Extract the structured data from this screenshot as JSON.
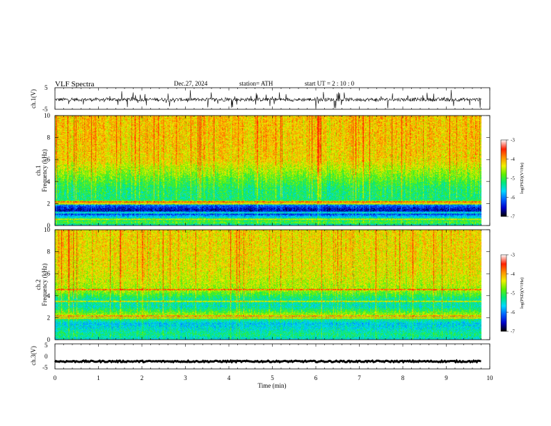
{
  "header": {
    "title": "VLF  Spectra",
    "date": "Dec.27, 2024",
    "station": "station= ATH",
    "start": "start  UT  =    2  : 10 : 0"
  },
  "chart_data": [
    {
      "type": "line",
      "panel": "ch1-waveform",
      "ylabel": "ch.1(V)",
      "xlim": [
        0,
        10
      ],
      "ylim": [
        -5,
        5
      ],
      "yticks": [
        "5",
        "-5"
      ],
      "data_extent_min": 9.8,
      "baseline": -0.5,
      "variation": [
        -2.5,
        2.5
      ]
    },
    {
      "type": "heatmap",
      "panel": "ch1-spectrogram",
      "ylabel": "ch.1\nFrequency  (kHz)",
      "xlim": [
        0,
        10
      ],
      "ylim": [
        0,
        10
      ],
      "yticks": [
        "0",
        "2",
        "4",
        "6",
        "8",
        "10"
      ],
      "data_extent_min": 9.8,
      "psd_profile": [
        {
          "f": 0.0,
          "log_psd": -5.5
        },
        {
          "f": 0.3,
          "log_psd": -4.6
        },
        {
          "f": 0.8,
          "log_psd": -5.4
        },
        {
          "f": 1.1,
          "log_psd": -6.3
        },
        {
          "f": 1.5,
          "log_psd": -6.5
        },
        {
          "f": 1.9,
          "log_psd": -5.9
        },
        {
          "f": 2.1,
          "log_psd": -4.0
        },
        {
          "f": 2.4,
          "log_psd": -5.0
        },
        {
          "f": 3.5,
          "log_psd": -4.9
        },
        {
          "f": 4.5,
          "log_psd": -4.5
        },
        {
          "f": 6.0,
          "log_psd": -3.9
        },
        {
          "f": 8.0,
          "log_psd": -3.8
        },
        {
          "f": 10.0,
          "log_psd": -3.8
        }
      ],
      "lines_khz": [
        0.6,
        1.2,
        2.0,
        2.2
      ]
    },
    {
      "type": "heatmap",
      "panel": "ch2-spectrogram",
      "ylabel": "ch.2\nFrequency  (kHz)",
      "xlim": [
        0,
        10
      ],
      "ylim": [
        0,
        10
      ],
      "yticks": [
        "0",
        "2",
        "4",
        "6",
        "8",
        "10"
      ],
      "data_extent_min": 9.8,
      "psd_profile": [
        {
          "f": 0.0,
          "log_psd": -5.4
        },
        {
          "f": 0.5,
          "log_psd": -5.0
        },
        {
          "f": 1.0,
          "log_psd": -5.3
        },
        {
          "f": 1.5,
          "log_psd": -5.5
        },
        {
          "f": 2.0,
          "log_psd": -4.8
        },
        {
          "f": 2.3,
          "log_psd": -4.3
        },
        {
          "f": 3.0,
          "log_psd": -5.2
        },
        {
          "f": 3.8,
          "log_psd": -5.0
        },
        {
          "f": 4.5,
          "log_psd": -4.3
        },
        {
          "f": 6.0,
          "log_psd": -4.0
        },
        {
          "f": 8.0,
          "log_psd": -3.9
        },
        {
          "f": 10.0,
          "log_psd": -3.9
        }
      ],
      "lines_khz": [
        2.0,
        2.2,
        3.5,
        4.6
      ]
    },
    {
      "type": "line",
      "panel": "ch3-waveform",
      "ylabel": "ch.3(V)",
      "xlim": [
        0,
        10
      ],
      "ylim": [
        -5,
        5
      ],
      "yticks": [
        "5",
        "0",
        "-5"
      ],
      "data_extent_min": 9.8,
      "baseline": -2,
      "variation": [
        -0.3,
        0.3
      ]
    }
  ],
  "xaxis": {
    "label": "Time  (min)",
    "ticks": [
      "0",
      "1",
      "2",
      "3",
      "4",
      "5",
      "6",
      "7",
      "8",
      "9",
      "10"
    ]
  },
  "colorbar": {
    "label": "log(PSD)(V²/Hz)",
    "ticks": [
      "-3",
      "-4",
      "-5",
      "-6",
      "-7"
    ],
    "range": [
      -7,
      -3
    ]
  },
  "colors": {
    "scale": [
      "#000000",
      "#0000c8",
      "#0060ff",
      "#00d8ff",
      "#00e87a",
      "#60f000",
      "#f0f000",
      "#ff9000",
      "#ff2000",
      "#ffffff"
    ]
  }
}
